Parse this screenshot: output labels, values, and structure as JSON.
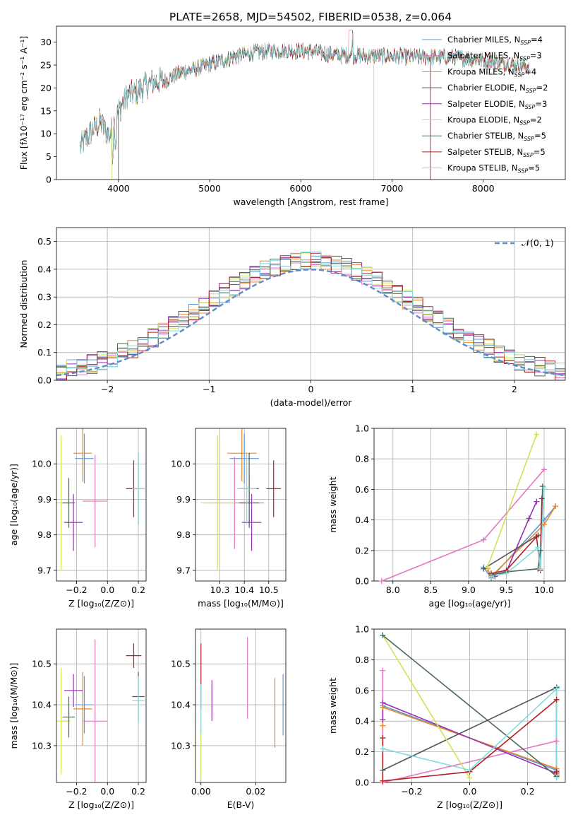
{
  "title": "PLATE=2658, MJD=54502, FIBERID=0538, z=0.064",
  "colors": {
    "Chabrier MILES": "#5b9bd5",
    "Salpeter MILES": "#e377c2",
    "Kroupa MILES": "#e88a2c",
    "Chabrier ELODIE": "#555555",
    "Salpeter ELODIE": "#9b30b5",
    "Kroupa ELODIE": "#d4e157",
    "Chabrier STELIB": "#4a6b55",
    "Salpeter STELIB": "#b22222",
    "Kroupa STELIB": "#80dbe0"
  },
  "chart_data": [
    {
      "id": "spectrum",
      "type": "line",
      "title": "PLATE=2658, MJD=54502, FIBERID=0538, z=0.064",
      "xlabel": "wavelength [Angstrom, rest frame]",
      "ylabel": "Flux [fλ10⁻¹⁷ erg cm⁻² s⁻¹ A⁻¹]",
      "xlim": [
        3320,
        8900
      ],
      "ylim": [
        0,
        33.5
      ],
      "xticks": [
        "4000",
        "5000",
        "6000",
        "7000",
        "8000"
      ],
      "yticks": [
        "0",
        "5",
        "10",
        "15",
        "20",
        "25",
        "30"
      ],
      "legend_position": "top-right",
      "series": [
        {
          "name": "Chabrier MILES, N",
          "sub": "SSP",
          "suffix": "=4",
          "key": "Chabrier MILES"
        },
        {
          "name": "Salpeter MILES, N",
          "sub": "SSP",
          "suffix": "=3",
          "key": "Salpeter MILES"
        },
        {
          "name": "Kroupa MILES, N",
          "sub": "SSP",
          "suffix": "=4",
          "key": "Kroupa MILES"
        },
        {
          "name": "Chabrier ELODIE, N",
          "sub": "SSP",
          "suffix": "=2",
          "key": "Chabrier ELODIE"
        },
        {
          "name": "Salpeter ELODIE, N",
          "sub": "SSP",
          "suffix": "=3",
          "key": "Salpeter ELODIE"
        },
        {
          "name": "Kroupa ELODIE, N",
          "sub": "SSP",
          "suffix": "=2",
          "key": "Kroupa ELODIE"
        },
        {
          "name": "Chabrier STELIB, N",
          "sub": "SSP",
          "suffix": "=5",
          "key": "Chabrier STELIB"
        },
        {
          "name": "Salpeter STELIB, N",
          "sub": "SSP",
          "suffix": "=5",
          "key": "Salpeter STELIB"
        },
        {
          "name": "Kroupa STELIB, N",
          "sub": "SSP",
          "suffix": "=5",
          "key": "Kroupa STELIB"
        }
      ],
      "continuum": {
        "x": [
          3580,
          3700,
          3800,
          3900,
          4000,
          4100,
          4200,
          4300,
          4400,
          4500,
          4700,
          4900,
          5100,
          5300,
          5500,
          5800,
          6100,
          6400,
          6700,
          7000,
          7300,
          7600,
          7900,
          8200,
          8400,
          8500
        ],
        "y": [
          7.0,
          10.5,
          12.5,
          9.5,
          15.0,
          18.5,
          19.0,
          20.5,
          21.5,
          21.5,
          23.5,
          24.5,
          25.8,
          27.0,
          27.8,
          28.2,
          28.0,
          27.2,
          27.0,
          27.0,
          26.7,
          26.7,
          26.4,
          25.5,
          25.0,
          24.6
        ]
      }
    },
    {
      "id": "residuals",
      "type": "step",
      "xlabel": "(data-model)/error",
      "ylabel": "Normed distribution",
      "xlim": [
        -2.5,
        2.5
      ],
      "ylim": [
        0,
        0.55
      ],
      "xticks": [
        "−2",
        "−1",
        "0",
        "1",
        "2"
      ],
      "yticks": [
        "0.0",
        "0.1",
        "0.2",
        "0.3",
        "0.4",
        "0.5"
      ],
      "bin_width": 0.1,
      "gaussian_label": "𝒩(0, 1)",
      "legend_position": "top-right"
    },
    {
      "id": "age_vs_Z",
      "type": "errorbar",
      "xlabel": "Z [log₁₀(Z/Z⊙)]",
      "ylabel": "age  [log₁₀(age/yr)]",
      "xlim": [
        -0.33,
        0.25
      ],
      "ylim": [
        9.67,
        10.1
      ],
      "xticks": [
        "−0.2",
        "0.0",
        "0.2"
      ],
      "yticks": [
        "9.7",
        "9.8",
        "9.9",
        "10.0"
      ],
      "points": [
        {
          "k": "Chabrier MILES",
          "x": -0.15,
          "y": 10.015,
          "ex": 0.06,
          "ey": 0.07
        },
        {
          "k": "Salpeter MILES",
          "x": -0.08,
          "y": 9.895,
          "ex": 0.08,
          "ey": 0.13
        },
        {
          "k": "Kroupa MILES",
          "x": -0.16,
          "y": 10.03,
          "ex": 0.06,
          "ey": 0.08
        },
        {
          "k": "Chabrier ELODIE",
          "x": 0.2,
          "y": 9.93,
          "ex": 0.04,
          "ey": 0.1
        },
        {
          "k": "Salpeter ELODIE",
          "x": -0.22,
          "y": 9.835,
          "ex": 0.06,
          "ey": 0.08
        },
        {
          "k": "Kroupa ELODIE",
          "x": -0.3,
          "y": 9.89,
          "ex": 0.06,
          "ey": 0.19
        },
        {
          "k": "Chabrier STELIB",
          "x": -0.25,
          "y": 9.89,
          "ex": 0.04,
          "ey": 0.07
        },
        {
          "k": "Salpeter STELIB",
          "x": 0.17,
          "y": 9.93,
          "ex": 0.05,
          "ey": 0.08
        },
        {
          "k": "Kroupa STELIB",
          "x": 0.2,
          "y": 9.93,
          "ex": 0.04,
          "ey": 0.1
        }
      ]
    },
    {
      "id": "age_vs_mass",
      "type": "errorbar",
      "xlabel": "mass [log₁₀(M/M⊙)]",
      "ylabel": "",
      "xlim": [
        10.2,
        10.57
      ],
      "ylim": [
        9.67,
        10.1
      ],
      "xticks": [
        "10.3",
        "10.4",
        "10.5"
      ],
      "yticks": [
        "9.7",
        "9.8",
        "9.9",
        "10.0"
      ],
      "points": [
        {
          "k": "Chabrier MILES",
          "x": 10.4,
          "y": 10.015,
          "ex": 0.06,
          "ey": 0.07
        },
        {
          "k": "Salpeter MILES",
          "x": 10.36,
          "y": 9.89,
          "ex": 0.12,
          "ey": 0.13
        },
        {
          "k": "Kroupa MILES",
          "x": 10.39,
          "y": 10.03,
          "ex": 0.06,
          "ey": 0.08
        },
        {
          "k": "Chabrier ELODIE",
          "x": 10.42,
          "y": 9.93,
          "ex": 0.04,
          "ey": 0.1
        },
        {
          "k": "Salpeter ELODIE",
          "x": 10.43,
          "y": 9.835,
          "ex": 0.04,
          "ey": 0.08
        },
        {
          "k": "Kroupa ELODIE",
          "x": 10.29,
          "y": 9.89,
          "ex": 0.07,
          "ey": 0.19
        },
        {
          "k": "Chabrier STELIB",
          "x": 10.42,
          "y": 9.89,
          "ex": 0.04,
          "ey": 0.07
        },
        {
          "k": "Salpeter STELIB",
          "x": 10.52,
          "y": 9.93,
          "ex": 0.03,
          "ey": 0.08
        },
        {
          "k": "Kroupa STELIB",
          "x": 10.41,
          "y": 9.93,
          "ex": 0.04,
          "ey": 0.1
        }
      ]
    },
    {
      "id": "weight_vs_age",
      "type": "line",
      "xlabel": "age  [log₁₀(age/yr)]",
      "ylabel": "mass weight",
      "xlim": [
        7.75,
        10.28
      ],
      "ylim": [
        0,
        1
      ],
      "xticks": [
        "8.0",
        "8.5",
        "9.0",
        "9.5",
        "10.0"
      ],
      "yticks": [
        "0.0",
        "0.2",
        "0.4",
        "0.6",
        "0.8",
        "1.0"
      ],
      "series": [
        {
          "k": "Chabrier MILES",
          "x": [
            9.2,
            9.3,
            10.0,
            10.15
          ],
          "y": [
            0.09,
            0.02,
            0.4,
            0.49
          ]
        },
        {
          "k": "Salpeter MILES",
          "x": [
            7.85,
            9.2,
            10.0
          ],
          "y": [
            0.0,
            0.27,
            0.73
          ]
        },
        {
          "k": "Kroupa MILES",
          "x": [
            9.25,
            9.3,
            10.0,
            10.15
          ],
          "y": [
            0.08,
            0.03,
            0.37,
            0.49
          ]
        },
        {
          "k": "Chabrier ELODIE",
          "x": [
            9.2,
            9.92
          ],
          "y": [
            0.08,
            0.3
          ]
        },
        {
          "k": "Salpeter ELODIE",
          "x": [
            9.35,
            9.5,
            9.8,
            9.9
          ],
          "y": [
            0.03,
            0.06,
            0.41,
            0.52
          ]
        },
        {
          "k": "Kroupa ELODIE",
          "x": [
            9.25,
            9.9
          ],
          "y": [
            0.09,
            0.96
          ]
        },
        {
          "k": "Chabrier STELIB",
          "x": [
            9.3,
            9.5,
            9.92,
            9.95,
            9.98
          ],
          "y": [
            0.04,
            0.06,
            0.08,
            0.2,
            0.62
          ]
        },
        {
          "k": "Salpeter STELIB",
          "x": [
            9.3,
            9.5,
            9.9,
            9.95,
            9.97
          ],
          "y": [
            0.05,
            0.07,
            0.29,
            0.07,
            0.54
          ]
        },
        {
          "k": "Kroupa STELIB",
          "x": [
            9.3,
            9.5,
            9.92,
            9.95,
            10.0
          ],
          "y": [
            0.03,
            0.05,
            0.22,
            0.08,
            0.61
          ]
        }
      ]
    },
    {
      "id": "mass_vs_Z",
      "type": "errorbar",
      "xlabel": "Z [log₁₀(Z/Z⊙)]",
      "ylabel": "mass [log₁₀(M/M⊙)]",
      "xlim": [
        -0.33,
        0.25
      ],
      "ylim": [
        10.21,
        10.585
      ],
      "xticks": [
        "−0.2",
        "0.0",
        "0.2"
      ],
      "yticks": [
        "10.3",
        "10.4",
        "10.5"
      ],
      "points": [
        {
          "k": "Chabrier MILES",
          "x": -0.15,
          "y": 10.4,
          "ex": 0.06,
          "ey": 0.07
        },
        {
          "k": "Salpeter MILES",
          "x": -0.08,
          "y": 10.36,
          "ex": 0.08,
          "ey": 0.2
        },
        {
          "k": "Kroupa MILES",
          "x": -0.16,
          "y": 10.39,
          "ex": 0.06,
          "ey": 0.09
        },
        {
          "k": "Chabrier ELODIE",
          "x": 0.2,
          "y": 10.42,
          "ex": 0.04,
          "ey": 0.06
        },
        {
          "k": "Salpeter ELODIE",
          "x": -0.22,
          "y": 10.435,
          "ex": 0.06,
          "ey": 0.04
        },
        {
          "k": "Kroupa ELODIE",
          "x": -0.3,
          "y": 10.36,
          "ex": 0.06,
          "ey": 0.13
        },
        {
          "k": "Chabrier STELIB",
          "x": -0.25,
          "y": 10.37,
          "ex": 0.04,
          "ey": 0.05
        },
        {
          "k": "Salpeter STELIB",
          "x": 0.17,
          "y": 10.52,
          "ex": 0.05,
          "ey": 0.03
        },
        {
          "k": "Kroupa STELIB",
          "x": 0.2,
          "y": 10.41,
          "ex": 0.04,
          "ey": 0.06
        }
      ]
    },
    {
      "id": "mass_vs_EBV",
      "type": "errorbar",
      "xlabel": "E(B-V)",
      "ylabel": "",
      "xlim": [
        -0.002,
        0.031
      ],
      "ylim": [
        10.21,
        10.585
      ],
      "xticks": [
        "0.00",
        "0.02"
      ],
      "yticks": [
        "10.3",
        "10.4",
        "10.5"
      ],
      "points": [
        {
          "k": "Chabrier MILES",
          "x": 0.03,
          "y": 10.4,
          "ex": 0,
          "ey": 0.075
        },
        {
          "k": "Salpeter MILES",
          "x": 0.017,
          "y": 10.465,
          "ex": 0,
          "ey": 0.1
        },
        {
          "k": "Kroupa MILES",
          "x": 0.027,
          "y": 10.38,
          "ex": 0,
          "ey": 0.085
        },
        {
          "k": "Salpeter ELODIE",
          "x": 0.004,
          "y": 10.41,
          "ex": 0,
          "ey": 0.05
        },
        {
          "k": "Kroupa ELODIE",
          "x": 0.0,
          "y": 10.3,
          "ex": 0,
          "ey": 0.08
        },
        {
          "k": "Salpeter STELIB",
          "x": 0.0,
          "y": 10.47,
          "ex": 0,
          "ey": 0.08
        },
        {
          "k": "Kroupa STELIB",
          "x": 0.0,
          "y": 10.39,
          "ex": 0,
          "ey": 0.06
        }
      ]
    },
    {
      "id": "weight_vs_Z",
      "type": "line",
      "xlabel": "Z [log₁₀(Z/Z⊙)]",
      "ylabel": "mass weight",
      "xlim": [
        -0.33,
        0.33
      ],
      "ylim": [
        0,
        1
      ],
      "xticks": [
        "−0.2",
        "0.0",
        "0.2"
      ],
      "yticks": [
        "0.0",
        "0.2",
        "0.4",
        "0.6",
        "0.8",
        "1.0"
      ],
      "series": [
        {
          "k": "Chabrier MILES",
          "x": [
            -0.3,
            0.3
          ],
          "y": [
            0.5,
            0.08
          ]
        },
        {
          "k": "Salpeter MILES",
          "x": [
            -0.3,
            -0.3,
            0.3
          ],
          "y": [
            0.73,
            0.0,
            0.27
          ]
        },
        {
          "k": "Kroupa MILES",
          "x": [
            -0.3,
            -0.3,
            0.3,
            0.3
          ],
          "y": [
            0.37,
            0.49,
            0.09,
            0.05
          ]
        },
        {
          "k": "Chabrier ELODIE",
          "x": [
            -0.3,
            0.3,
            0.3
          ],
          "y": [
            0.08,
            0.62,
            0.04
          ]
        },
        {
          "k": "Salpeter ELODIE",
          "x": [
            -0.3,
            -0.3,
            0.3
          ],
          "y": [
            0.41,
            0.52,
            0.06
          ]
        },
        {
          "k": "Kroupa ELODIE",
          "x": [
            -0.3,
            0.0
          ],
          "y": [
            0.96,
            0.03
          ]
        },
        {
          "k": "Chabrier STELIB",
          "x": [
            -0.3,
            0.3,
            0.3
          ],
          "y": [
            0.96,
            0.04,
            0.62
          ]
        },
        {
          "k": "Salpeter STELIB",
          "x": [
            -0.3,
            -0.3,
            0.0,
            0.3,
            0.3
          ],
          "y": [
            0.29,
            0.01,
            0.07,
            0.54,
            0.07
          ]
        },
        {
          "k": "Kroupa STELIB",
          "x": [
            -0.3,
            -0.3,
            0.0,
            0.3,
            0.3
          ],
          "y": [
            0.22,
            0.22,
            0.08,
            0.61,
            0.03
          ]
        }
      ]
    }
  ]
}
